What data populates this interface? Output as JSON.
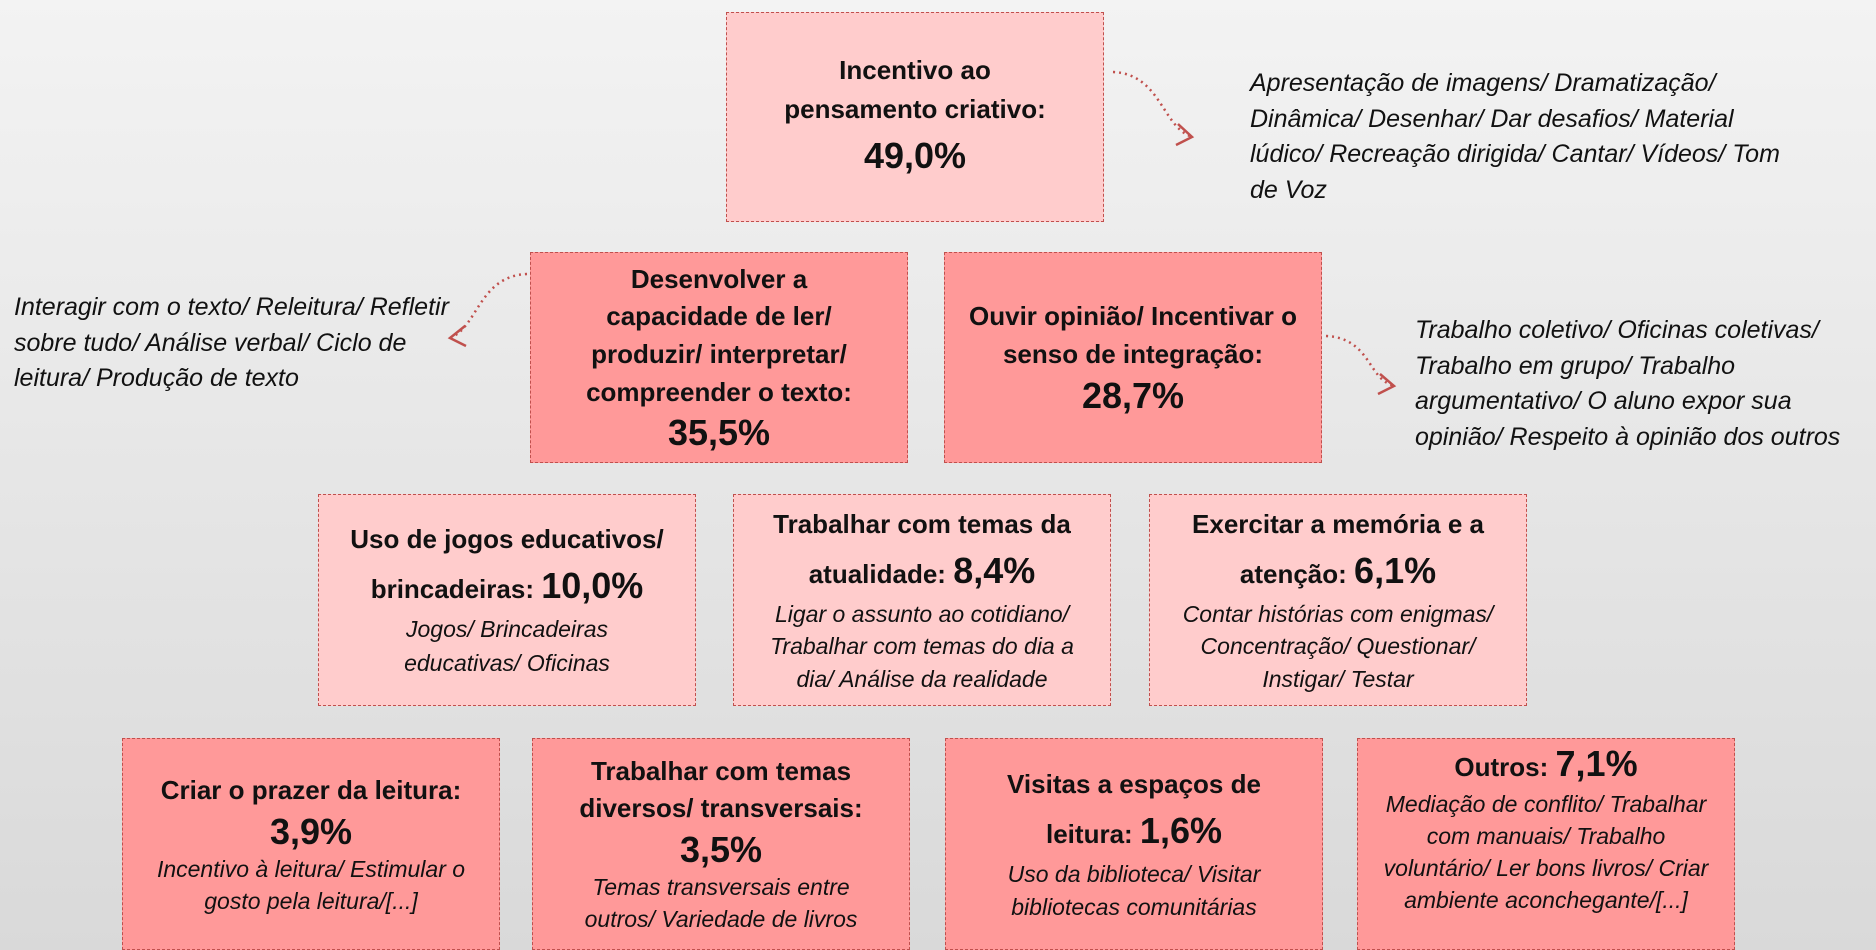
{
  "nodes": [
    {
      "title": "Incentivo ao pensamento criativo:",
      "value": "49,0%"
    },
    {
      "title": "Desenvolver a capacidade de ler/ produzir/ interpretar/ compreender o texto:",
      "value": "35,5%"
    },
    {
      "title": "Ouvir opinião/ Incentivar o senso de integração:",
      "value": "28,7%"
    },
    {
      "title": "Uso de jogos educativos/ brincadeiras:",
      "value": "10,0%",
      "details": "Jogos/ Brincadeiras educativas/ Oficinas"
    },
    {
      "title": "Trabalhar com temas da atualidade:",
      "value": "8,4%",
      "details": "Ligar o assunto ao cotidiano/ Trabalhar com temas do dia a dia/ Análise da realidade"
    },
    {
      "title": "Exercitar a memória e a atenção:",
      "value": "6,1%",
      "details": "Contar histórias com enigmas/ Concentração/ Questionar/ Instigar/ Testar"
    },
    {
      "title": "Criar o prazer da leitura:",
      "value": "3,9%",
      "details": "Incentivo à leitura/ Estimular o gosto pela leitura/[...]"
    },
    {
      "title": "Trabalhar com temas diversos/ transversais:",
      "value": "3,5%",
      "details": "Temas transversais entre outros/ Variedade de livros"
    },
    {
      "title": "Visitas a espaços de leitura:",
      "value": "1,6%",
      "details": "Uso da biblioteca/ Visitar bibliotecas comunitárias"
    },
    {
      "title": "Outros:",
      "value": "7,1%",
      "details": "Mediação de conflito/ Trabalhar com manuais/ Trabalho voluntário/ Ler bons livros/ Criar ambiente aconchegante/[...]"
    }
  ],
  "side_notes": [
    "Apresentação de imagens/ Dramatização/ Dinâmica/ Desenhar/ Dar desafios/ Material lúdico/ Recreação dirigida/ Cantar/ Vídeos/ Tom de Voz",
    "Interagir com o texto/ Releitura/ Refletir sobre tudo/ Análise verbal/ Ciclo de leitura/ Produção de texto",
    "Trabalho coletivo/ Oficinas coletivas/ Trabalho em grupo/ Trabalho argumentativo/ O aluno expor sua opinião/ Respeito à opinião dos outros"
  ]
}
